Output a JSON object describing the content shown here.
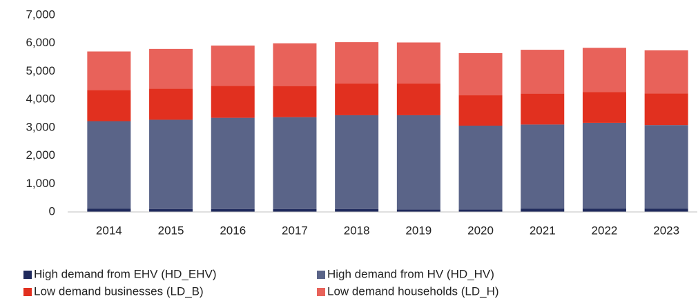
{
  "chart_data": {
    "type": "stacked_bar",
    "categories": [
      "2014",
      "2015",
      "2016",
      "2017",
      "2018",
      "2019",
      "2020",
      "2021",
      "2022",
      "2023"
    ],
    "series": [
      {
        "name": "High demand from EHV (HD_EHV)",
        "color": "#1f2a5c",
        "values": [
          120,
          100,
          100,
          100,
          100,
          90,
          90,
          120,
          120,
          120
        ]
      },
      {
        "name": "High demand from HV (HD_HV)",
        "color": "#5a6488",
        "values": [
          3110,
          3180,
          3250,
          3270,
          3340,
          3350,
          2980,
          2990,
          3050,
          2970
        ]
      },
      {
        "name": "Low demand businesses (LD_B)",
        "color": "#e1301f",
        "values": [
          1110,
          1110,
          1140,
          1110,
          1130,
          1130,
          1080,
          1100,
          1100,
          1130
        ]
      },
      {
        "name": "Low demand households (LD_H)",
        "color": "#e8625a",
        "values": [
          1370,
          1410,
          1430,
          1520,
          1470,
          1460,
          1500,
          1560,
          1570,
          1530
        ]
      }
    ],
    "ylim": [
      0,
      7000
    ],
    "yticks": [
      0,
      {
        "value": 1000,
        "label": "1,000"
      },
      {
        "value": 2000,
        "label": "2,000"
      },
      {
        "value": 3000,
        "label": "3,000"
      },
      {
        "value": 4000,
        "label": "4,000"
      },
      {
        "value": 5000,
        "label": "5,000"
      },
      {
        "value": 6000,
        "label": "6,000"
      },
      {
        "value": 7000,
        "label": "7,000"
      }
    ],
    "grid": false,
    "legend": "bottom"
  }
}
